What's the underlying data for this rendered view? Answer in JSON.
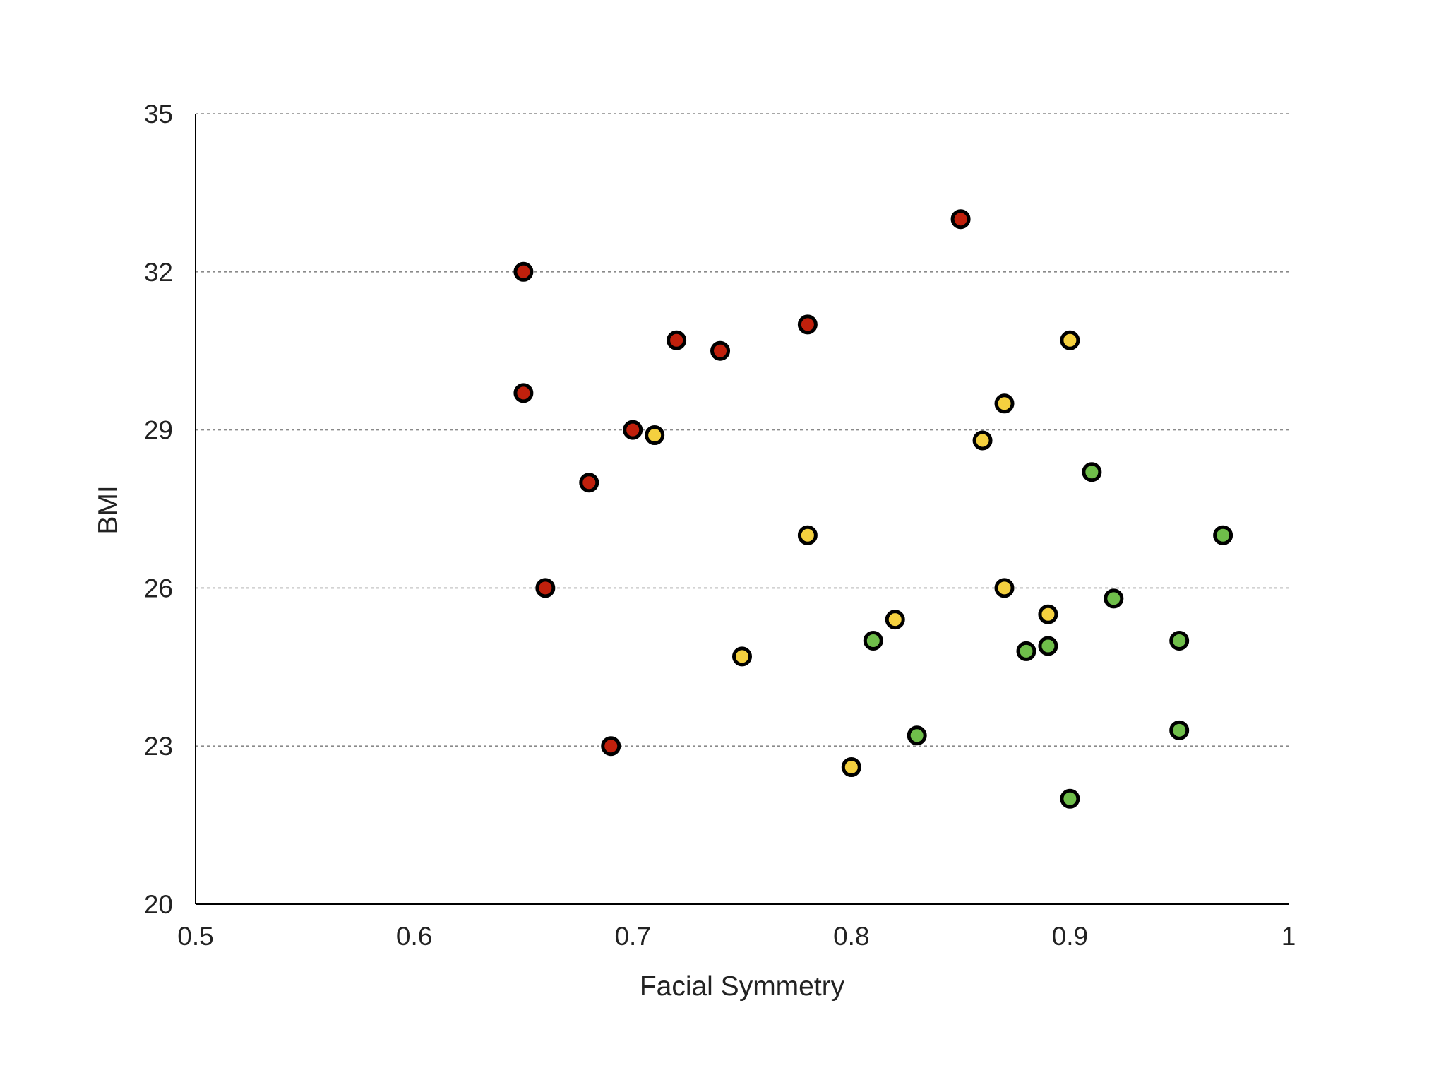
{
  "chart_data": {
    "type": "scatter",
    "title": "",
    "xlabel": "Facial Symmetry",
    "ylabel": "BMI",
    "xlim": [
      0.5,
      1
    ],
    "ylim": [
      20,
      35
    ],
    "xticks": [
      0.5,
      0.6,
      0.7,
      0.8,
      0.9,
      1
    ],
    "xtick_labels": [
      "0.5",
      "0.6",
      "0.7",
      "0.8",
      "0.9",
      "1"
    ],
    "yticks": [
      20,
      23,
      26,
      29,
      32,
      35
    ],
    "ytick_labels": [
      "20",
      "23",
      "26",
      "29",
      "32",
      "35"
    ],
    "grid": "horizontal dashed",
    "legend": "none",
    "series": [
      {
        "color": "#c0200c",
        "points": [
          {
            "x": 0.65,
            "y": 32.0
          },
          {
            "x": 0.65,
            "y": 29.7
          },
          {
            "x": 0.66,
            "y": 26.0
          },
          {
            "x": 0.68,
            "y": 28.0
          },
          {
            "x": 0.69,
            "y": 23.0
          },
          {
            "x": 0.7,
            "y": 29.0
          },
          {
            "x": 0.72,
            "y": 30.7
          },
          {
            "x": 0.74,
            "y": 30.5
          },
          {
            "x": 0.78,
            "y": 31.0
          },
          {
            "x": 0.85,
            "y": 33.0
          }
        ]
      },
      {
        "color": "#f4d03f",
        "points": [
          {
            "x": 0.71,
            "y": 28.9
          },
          {
            "x": 0.75,
            "y": 24.7
          },
          {
            "x": 0.78,
            "y": 27.0
          },
          {
            "x": 0.8,
            "y": 22.6
          },
          {
            "x": 0.82,
            "y": 25.4
          },
          {
            "x": 0.86,
            "y": 28.8
          },
          {
            "x": 0.87,
            "y": 29.5
          },
          {
            "x": 0.87,
            "y": 26.0
          },
          {
            "x": 0.89,
            "y": 25.5
          },
          {
            "x": 0.9,
            "y": 30.7
          }
        ]
      },
      {
        "color": "#6fbe4a",
        "points": [
          {
            "x": 0.81,
            "y": 25.0
          },
          {
            "x": 0.83,
            "y": 23.2
          },
          {
            "x": 0.88,
            "y": 24.8
          },
          {
            "x": 0.89,
            "y": 24.9
          },
          {
            "x": 0.9,
            "y": 22.0
          },
          {
            "x": 0.91,
            "y": 28.2
          },
          {
            "x": 0.92,
            "y": 25.8
          },
          {
            "x": 0.95,
            "y": 25.0
          },
          {
            "x": 0.95,
            "y": 23.3
          },
          {
            "x": 0.97,
            "y": 27.0
          }
        ]
      }
    ]
  }
}
